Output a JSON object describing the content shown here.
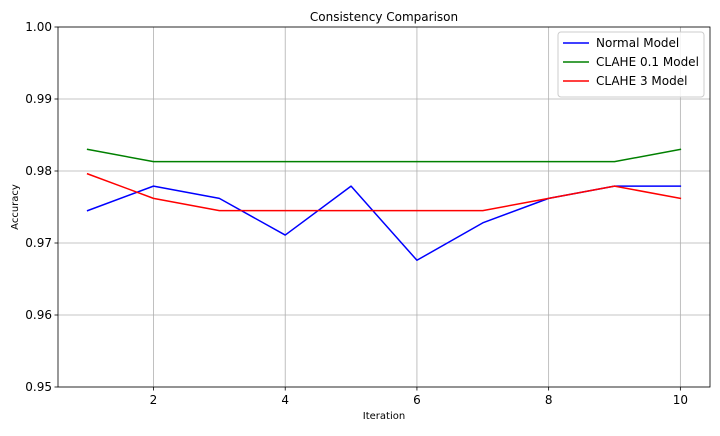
{
  "chart_data": {
    "type": "line",
    "title": "Consistency Comparison",
    "xlabel": "Iteration",
    "ylabel": "Accuracy",
    "x": [
      1,
      2,
      3,
      4,
      5,
      6,
      7,
      8,
      9,
      10
    ],
    "xlim": [
      0.55,
      10.45
    ],
    "ylim": [
      0.95,
      1.0
    ],
    "xticks": [
      2,
      4,
      6,
      8,
      10
    ],
    "xtick_labels": [
      "2",
      "4",
      "6",
      "8",
      "10"
    ],
    "yticks": [
      0.95,
      0.96,
      0.97,
      0.98,
      0.99,
      1.0
    ],
    "ytick_labels": [
      "0.95",
      "0.96",
      "0.97",
      "0.98",
      "0.99",
      "1.00"
    ],
    "grid": true,
    "legend_position": "top-right",
    "series": [
      {
        "name": "Normal Model",
        "color": "#0000ff",
        "values": [
          0.9745,
          0.9779,
          0.9762,
          0.9711,
          0.9779,
          0.9676,
          0.9728,
          0.9762,
          0.9779,
          0.9779
        ]
      },
      {
        "name": "CLAHE 0.1 Model",
        "color": "#008000",
        "values": [
          0.983,
          0.9813,
          0.9813,
          0.9813,
          0.9813,
          0.9813,
          0.9813,
          0.9813,
          0.9813,
          0.983
        ]
      },
      {
        "name": "CLAHE 3 Model",
        "color": "#ff0000",
        "values": [
          0.9796,
          0.9762,
          0.9745,
          0.9745,
          0.9745,
          0.9745,
          0.9745,
          0.9762,
          0.9779,
          0.9762
        ]
      }
    ]
  }
}
